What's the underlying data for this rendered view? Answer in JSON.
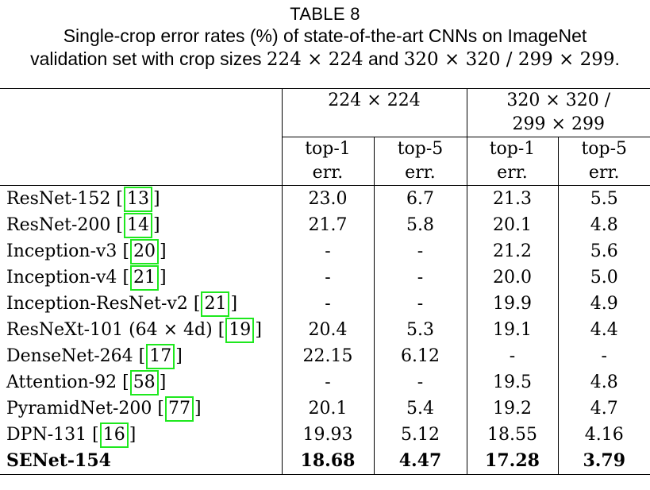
{
  "caption": {
    "label": "TABLE 8",
    "line1": "Single-crop error rates (%) of state-of-the-art CNNs on ImageNet",
    "line2_prefix": "validation set with crop sizes ",
    "line2_crop1": "224 × 224",
    "line2_and": " and ",
    "line2_crop2": "320 × 320 / 299 × 299",
    "line2_suffix": "."
  },
  "table": {
    "group_headers": {
      "crop_224": "224 × 224",
      "crop_320_line1": "320 × 320 /",
      "crop_320_line2": "299 × 299"
    },
    "sub_headers": {
      "top1_line1": "top-1",
      "top1_line2": "err.",
      "top5_line1": "top-5",
      "top5_line2": "err."
    },
    "rows": [
      {
        "model": "ResNet-152 ",
        "cite": "13",
        "model_suffix": "",
        "v": [
          "23.0",
          "6.7",
          "21.3",
          "5.5"
        ]
      },
      {
        "model": "ResNet-200 ",
        "cite": "14",
        "model_suffix": "",
        "v": [
          "21.7",
          "5.8",
          "20.1",
          "4.8"
        ]
      },
      {
        "model": "Inception-v3 ",
        "cite": "20",
        "model_suffix": "",
        "v": [
          "-",
          "-",
          "21.2",
          "5.6"
        ]
      },
      {
        "model": "Inception-v4 ",
        "cite": "21",
        "model_suffix": "",
        "v": [
          "-",
          "-",
          "20.0",
          "5.0"
        ]
      },
      {
        "model": "Inception-ResNet-v2 ",
        "cite": "21",
        "model_suffix": "",
        "v": [
          "-",
          "-",
          "19.9",
          "4.9"
        ]
      },
      {
        "model": "ResNeXt-101 (64 × 4d) ",
        "cite": "19",
        "model_suffix": "",
        "v": [
          "20.4",
          "5.3",
          "19.1",
          "4.4"
        ]
      },
      {
        "model": "DenseNet-264 ",
        "cite": "17",
        "model_suffix": "",
        "v": [
          "22.15",
          "6.12",
          "-",
          "-"
        ]
      },
      {
        "model": "Attention-92 ",
        "cite": "58",
        "model_suffix": "",
        "v": [
          "-",
          "-",
          "19.5",
          "4.8"
        ]
      },
      {
        "model": "PyramidNet-200 ",
        "cite": "77",
        "model_suffix": "",
        "v": [
          "20.1",
          "5.4",
          "19.2",
          "4.7"
        ]
      },
      {
        "model": "DPN-131 ",
        "cite": "16",
        "model_suffix": "",
        "v": [
          "19.93",
          "5.12",
          "18.55",
          "4.16"
        ]
      },
      {
        "model": "SENet-154",
        "cite": "",
        "model_suffix": "",
        "v": [
          "18.68",
          "4.47",
          "17.28",
          "3.79"
        ]
      }
    ],
    "citation_highlight_color": "#1ee81e"
  }
}
